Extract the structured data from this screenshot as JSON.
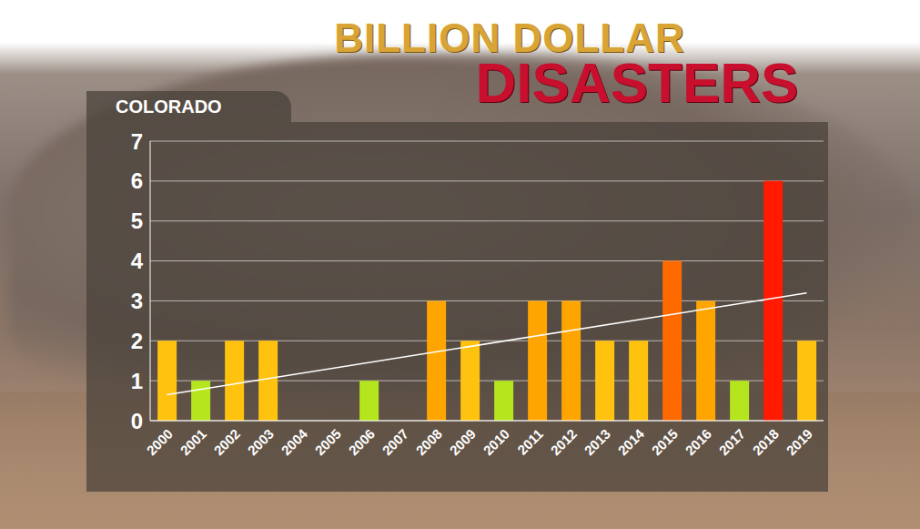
{
  "chart_data": {
    "type": "bar",
    "title": "BILLION DOLLAR",
    "subtitle": "DISASTERS",
    "annotations": [
      "COLORADO"
    ],
    "categories": [
      "2000",
      "2001",
      "2002",
      "2003",
      "2004",
      "2005",
      "2006",
      "2007",
      "2008",
      "2009",
      "2010",
      "2011",
      "2012",
      "2013",
      "2014",
      "2015",
      "2016",
      "2017",
      "2018",
      "2019"
    ],
    "values": [
      2,
      1,
      2,
      2,
      0,
      0,
      1,
      0,
      3,
      2,
      1,
      3,
      3,
      2,
      2,
      4,
      3,
      1,
      6,
      2
    ],
    "colors": [
      "#ffc20e",
      "#b5e61d",
      "#ffc20e",
      "#ffc20e",
      "#ffc20e",
      "#ffc20e",
      "#b5e61d",
      "#ffc20e",
      "#ffa500",
      "#ffc20e",
      "#b5e61d",
      "#ffa500",
      "#ffa500",
      "#ffc20e",
      "#ffc20e",
      "#ff6a00",
      "#ffa500",
      "#b5e61d",
      "#ff1a00",
      "#ffc20e"
    ],
    "trend": {
      "categories": [
        "2000",
        "2019"
      ],
      "values": [
        0.65,
        3.2
      ],
      "color": "#ffffff"
    },
    "ylim": [
      0,
      7
    ],
    "yticks": [
      0,
      1,
      2,
      3,
      4,
      5,
      6,
      7
    ],
    "grid": true
  }
}
